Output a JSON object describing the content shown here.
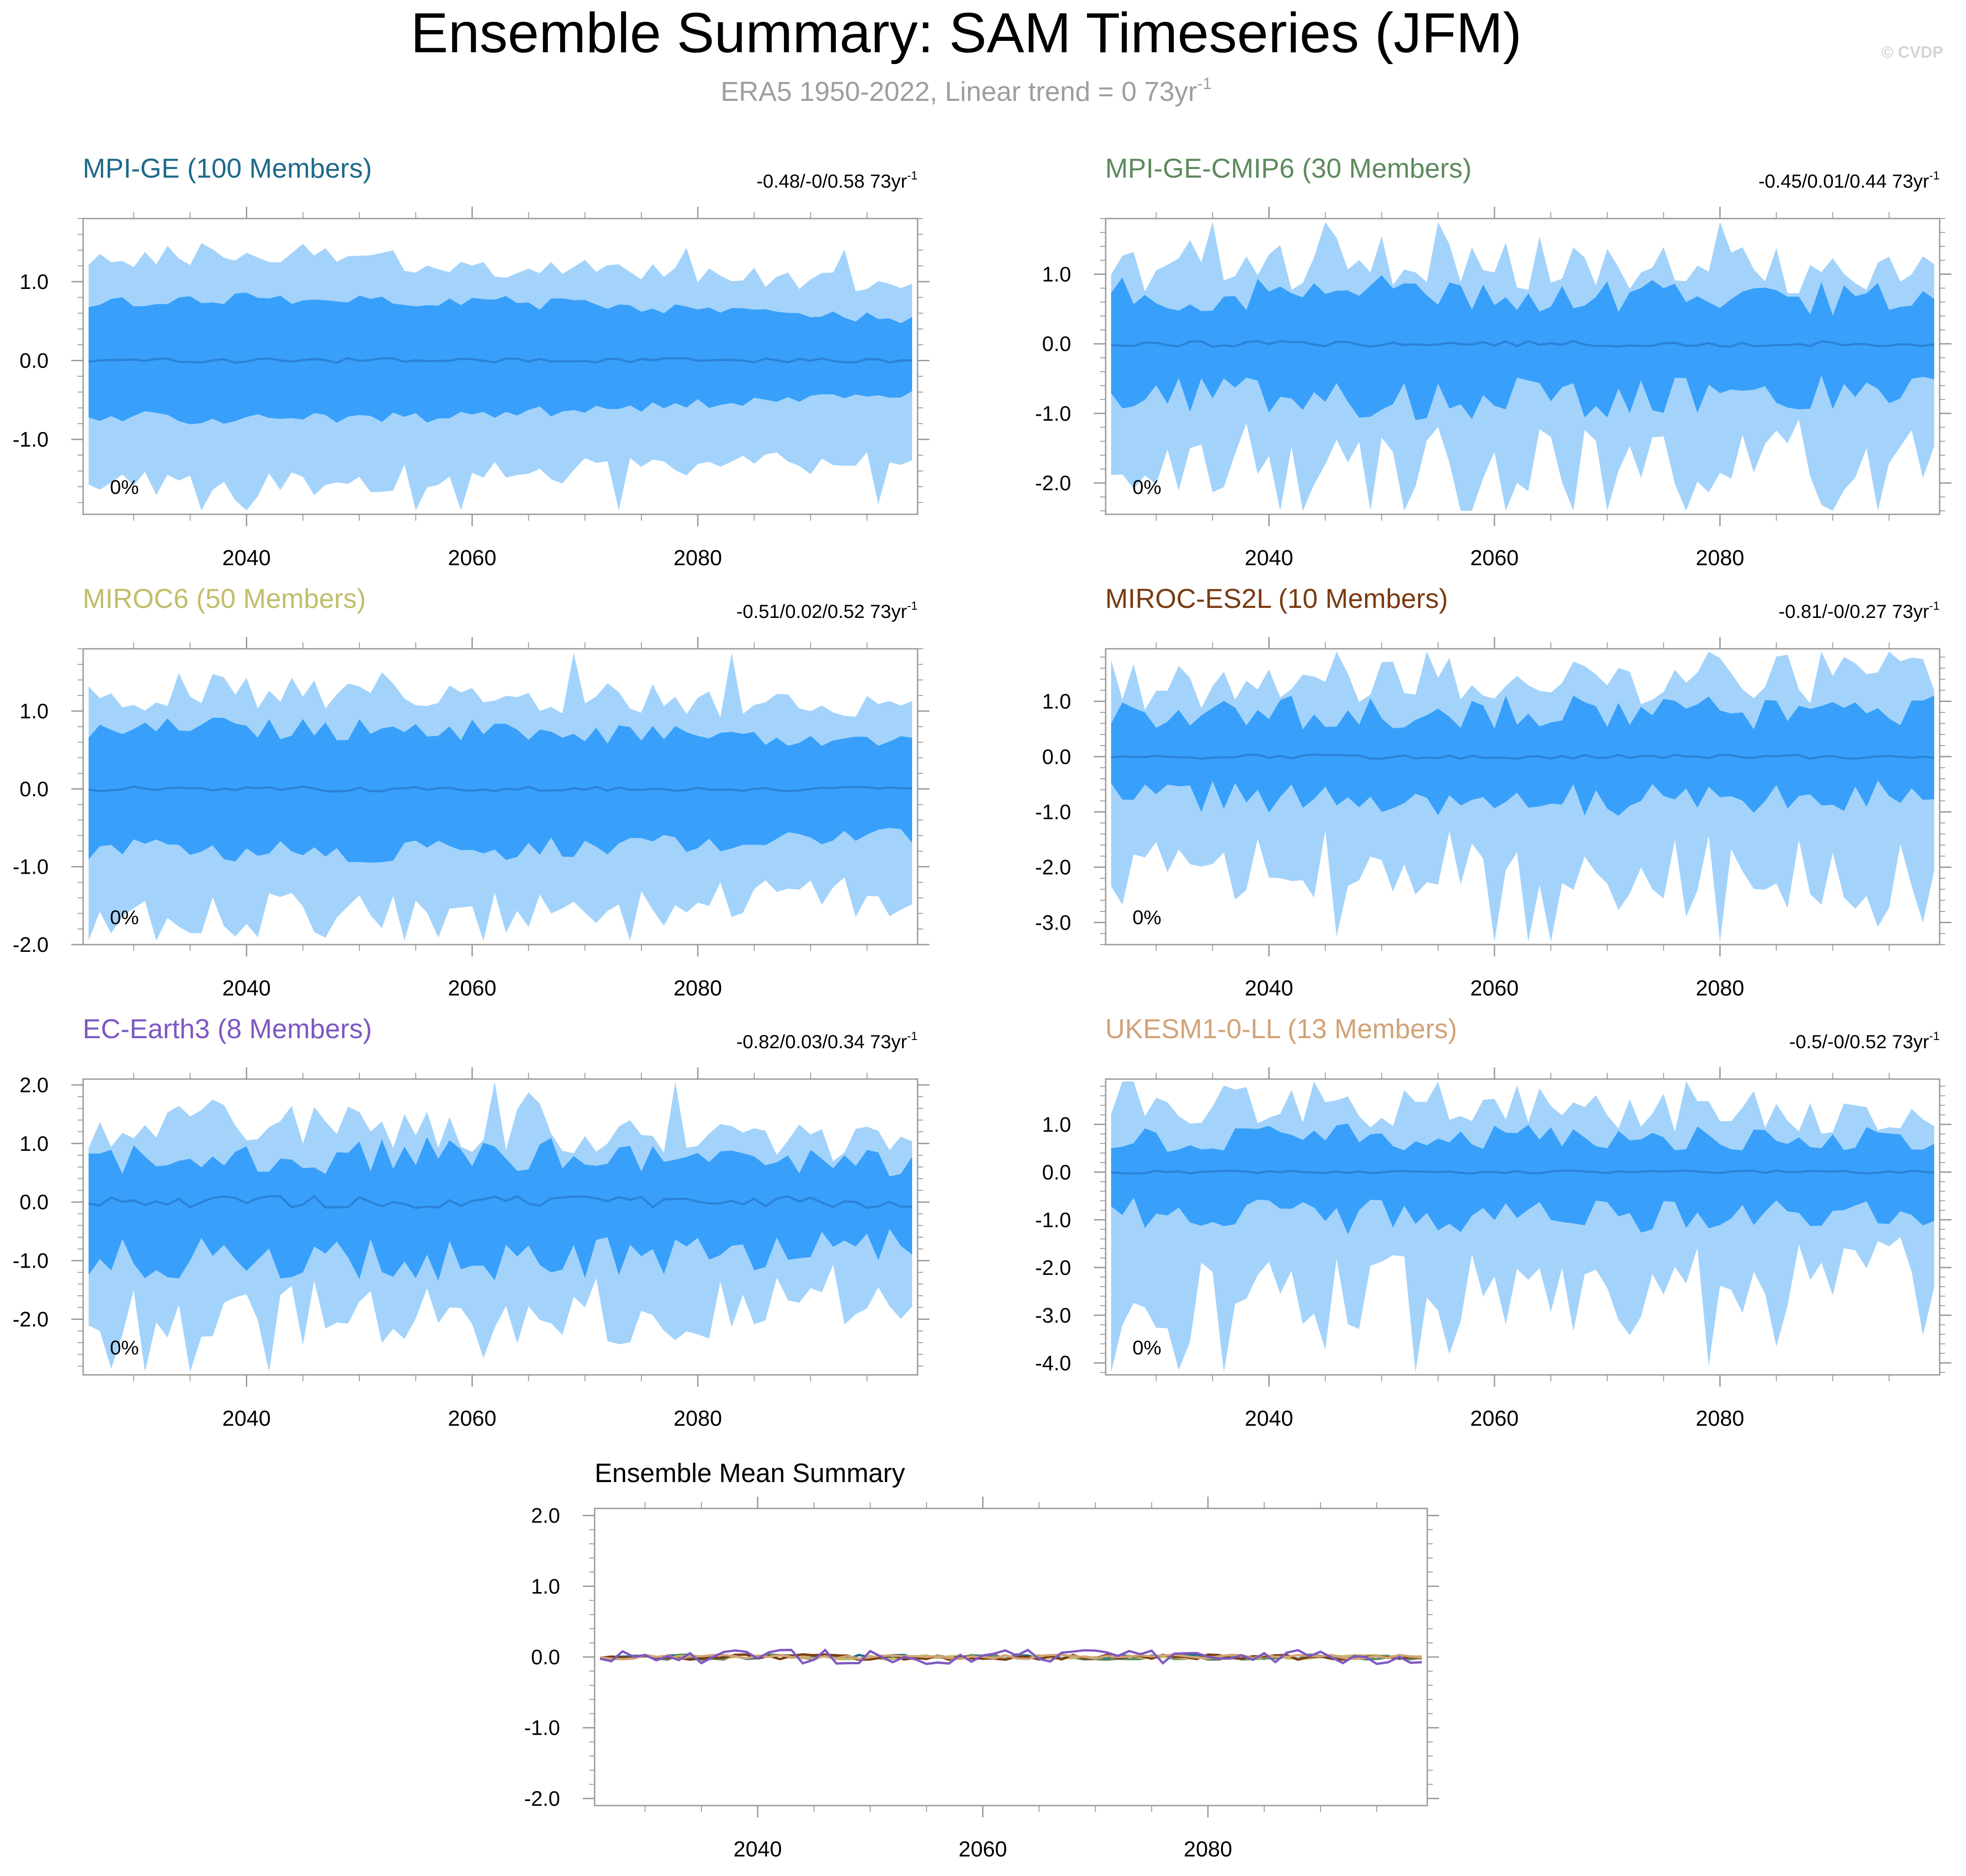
{
  "header": {
    "title": "Ensemble Summary: SAM Timeseries (JFM)",
    "subtitle": "ERA5 1950-2022, Linear trend = 0 73yr",
    "subtitle_sup": "-1",
    "watermark": "© CVDP"
  },
  "colors": {
    "outer_band": "#a3d3fb",
    "inner_band": "#38a0fa",
    "mean_line": "#2c83d7",
    "axis": "#9a9a9a",
    "text": "#000000"
  },
  "chart_data": [
    {
      "type": "area",
      "title": "MPI-GE (100 Members)",
      "title_color": "#1f6a8a",
      "trend": "-0.48/-0/0.58 73yr",
      "trend_sup": "-1",
      "percent": "0%",
      "xlim": [
        2026,
        2099
      ],
      "ylim": [
        -1.95,
        1.8
      ],
      "xticks": [
        2040,
        2060,
        2080
      ],
      "yticks": [
        1.0,
        0.0,
        -1.0
      ],
      "ytick_labels": [
        "1.0",
        "0.0",
        "-1.0"
      ],
      "band_style": "smooth",
      "mean_amp": 0.03,
      "seed": 11,
      "outer": [
        [
          2026,
          -1.48,
          1.28
        ],
        [
          2040,
          -1.6,
          1.35
        ],
        [
          2060,
          -1.45,
          1.2
        ],
        [
          2080,
          -1.35,
          1.1
        ],
        [
          2099,
          -1.25,
          0.95
        ]
      ],
      "inner": [
        [
          2026,
          -0.7,
          0.75
        ],
        [
          2040,
          -0.75,
          0.8
        ],
        [
          2060,
          -0.7,
          0.75
        ],
        [
          2080,
          -0.55,
          0.65
        ],
        [
          2099,
          -0.42,
          0.52
        ]
      ]
    },
    {
      "type": "area",
      "title": "MPI-GE-CMIP6 (30 Members)",
      "title_color": "#5d8a5d",
      "trend": "-0.45/0.01/0.44 73yr",
      "trend_sup": "-1",
      "percent": "0%",
      "xlim": [
        2026,
        2099
      ],
      "ylim": [
        -2.45,
        1.8
      ],
      "xticks": [
        2040,
        2060,
        2080
      ],
      "yticks": [
        1.0,
        0.0,
        -1.0,
        -2.0
      ],
      "ytick_labels": [
        "1.0",
        "0.0",
        "-1.0",
        "-2.0"
      ],
      "band_style": "noisy",
      "mean_amp": 0.04,
      "seed": 23,
      "outer": [
        [
          2026,
          -1.6,
          1.1
        ],
        [
          2060,
          -1.75,
          1.2
        ],
        [
          2099,
          -1.45,
          0.95
        ]
      ],
      "inner": [
        [
          2026,
          -0.75,
          0.72
        ],
        [
          2060,
          -0.8,
          0.75
        ],
        [
          2099,
          -0.65,
          0.65
        ]
      ]
    },
    {
      "type": "area",
      "title": "MIROC6 (50 Members)",
      "title_color": "#c2bd6a",
      "trend": "-0.51/0.02/0.52 73yr",
      "trend_sup": "-1",
      "percent": "0%",
      "xlim": [
        2026,
        2099
      ],
      "ylim": [
        -2.0,
        1.8
      ],
      "xticks": [
        2040,
        2060,
        2080
      ],
      "yticks": [
        1.0,
        0.0,
        -1.0,
        -2.0
      ],
      "ytick_labels": [
        "1.0",
        "0.0",
        "-1.0",
        "-2.0"
      ],
      "band_style": "medium",
      "mean_amp": 0.03,
      "seed": 37,
      "outer": [
        [
          2026,
          -1.6,
          1.25
        ],
        [
          2060,
          -1.65,
          1.25
        ],
        [
          2099,
          -1.35,
          1.0
        ]
      ],
      "inner": [
        [
          2026,
          -0.8,
          0.8
        ],
        [
          2060,
          -0.8,
          0.75
        ],
        [
          2099,
          -0.6,
          0.6
        ]
      ]
    },
    {
      "type": "area",
      "title": "MIROC-ES2L (10 Members)",
      "title_color": "#7a3b12",
      "trend": "-0.81/-0/0.27 73yr",
      "trend_sup": "-1",
      "percent": "0%",
      "xlim": [
        2026,
        2099
      ],
      "ylim": [
        -3.4,
        1.95
      ],
      "xticks": [
        2040,
        2060,
        2080
      ],
      "yticks": [
        1.0,
        0.0,
        -1.0,
        -2.0,
        -3.0
      ],
      "ytick_labels": [
        "1.0",
        "0.0",
        "-1.0",
        "-2.0",
        "-3.0"
      ],
      "band_style": "noisy",
      "mean_amp": 0.04,
      "seed": 41,
      "outer": [
        [
          2026,
          -2.0,
          1.3
        ],
        [
          2060,
          -2.0,
          1.3
        ],
        [
          2099,
          -2.1,
          1.4
        ]
      ],
      "inner": [
        [
          2026,
          -0.7,
          0.8
        ],
        [
          2060,
          -0.8,
          0.8
        ],
        [
          2099,
          -0.7,
          0.8
        ]
      ]
    },
    {
      "type": "area",
      "title": "EC-Earth3 (8 Members)",
      "title_color": "#7e58c2",
      "trend": "-0.82/0.03/0.34 73yr",
      "trend_sup": "-1",
      "percent": "0%",
      "xlim": [
        2026,
        2099
      ],
      "ylim": [
        -2.95,
        2.1
      ],
      "xticks": [
        2040,
        2060,
        2080
      ],
      "yticks": [
        2.0,
        1.0,
        0.0,
        -1.0,
        -2.0
      ],
      "ytick_labels": [
        "2.0",
        "1.0",
        "0.0",
        "-1.0",
        "-2.0"
      ],
      "band_style": "noisy",
      "mean_amp": 0.1,
      "seed": 53,
      "outer": [
        [
          2026,
          -1.8,
          1.3
        ],
        [
          2060,
          -2.0,
          1.3
        ],
        [
          2099,
          -1.5,
          0.95
        ]
      ],
      "inner": [
        [
          2026,
          -0.95,
          0.75
        ],
        [
          2060,
          -1.0,
          0.8
        ],
        [
          2099,
          -0.75,
          0.7
        ]
      ]
    },
    {
      "type": "area",
      "title": "UKESM1-0-LL (13 Members)",
      "title_color": "#d1a377",
      "trend": "-0.5/-0/0.52 73yr",
      "trend_sup": "-1",
      "percent": "0%",
      "xlim": [
        2026,
        2099
      ],
      "ylim": [
        -4.25,
        1.95
      ],
      "xticks": [
        2040,
        2060,
        2080
      ],
      "yticks": [
        1.0,
        0.0,
        -1.0,
        -2.0,
        -3.0,
        -4.0
      ],
      "ytick_labels": [
        "1.0",
        "0.0",
        "-1.0",
        "-2.0",
        "-3.0",
        "-4.0"
      ],
      "band_style": "noisy",
      "mean_amp": 0.03,
      "seed": 67,
      "outer": [
        [
          2026,
          -2.4,
          1.35
        ],
        [
          2060,
          -2.6,
          1.4
        ],
        [
          2099,
          -1.9,
          1.1
        ]
      ],
      "inner": [
        [
          2026,
          -0.85,
          0.7
        ],
        [
          2060,
          -1.0,
          0.75
        ],
        [
          2099,
          -0.8,
          0.7
        ]
      ]
    },
    {
      "type": "line",
      "title": "Ensemble Mean Summary",
      "title_color": "#000000",
      "xlim": [
        2026,
        2099
      ],
      "ylim": [
        -2.1,
        2.1
      ],
      "xticks": [
        2040,
        2060,
        2080
      ],
      "yticks": [
        2.0,
        1.0,
        0.0,
        -1.0,
        -2.0
      ],
      "ytick_labels": [
        "2.0",
        "1.0",
        "0.0",
        "-1.0",
        "-2.0"
      ],
      "series": [
        {
          "name": "MPI-GE",
          "color": "#1f6a8a",
          "amp": 0.03,
          "seed": 11
        },
        {
          "name": "MPI-GE-CMIP6",
          "color": "#5d8a5d",
          "amp": 0.04,
          "seed": 23
        },
        {
          "name": "MIROC6",
          "color": "#c2bd6a",
          "amp": 0.03,
          "seed": 37
        },
        {
          "name": "MIROC-ES2L",
          "color": "#7a3b12",
          "amp": 0.04,
          "seed": 41
        },
        {
          "name": "UKESM1-0-LL",
          "color": "#d1a377",
          "amp": 0.03,
          "seed": 67
        },
        {
          "name": "EC-Earth3",
          "color": "#7e58c2",
          "amp": 0.1,
          "seed": 53
        }
      ]
    }
  ]
}
